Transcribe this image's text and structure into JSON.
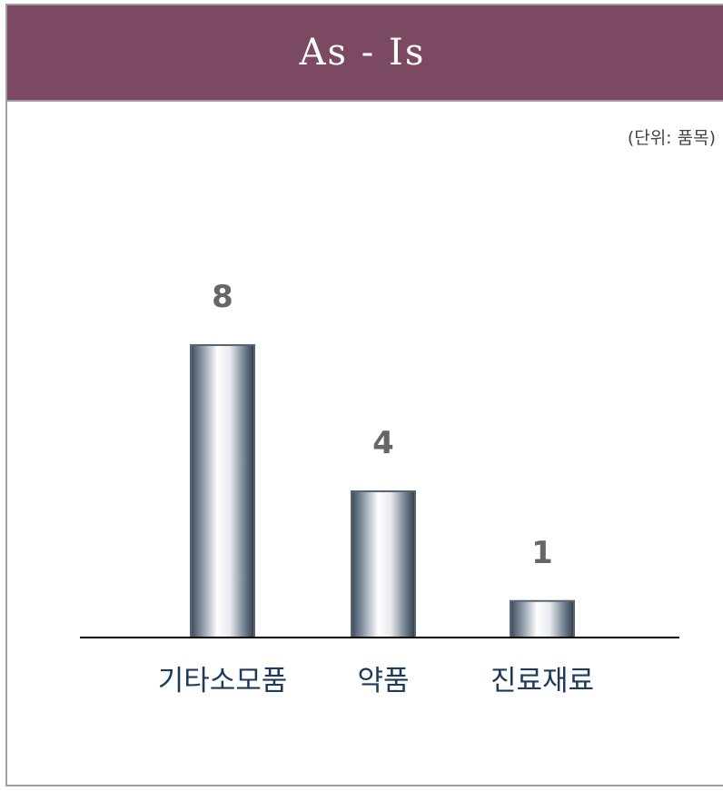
{
  "header": {
    "title": "As - Is",
    "unit_label": "(단위: 품목)"
  },
  "colors": {
    "header_bg": "#7b4a62",
    "bar_dark": "#3b4a5c",
    "bar_light": "#ffffff",
    "value_label": "#666666",
    "category_label": "#1e3a5a"
  },
  "chart_data": {
    "type": "bar",
    "categories": [
      "기타소모품",
      "약품",
      "진료재료"
    ],
    "values": [
      8,
      4,
      1
    ],
    "title": "",
    "xlabel": "",
    "ylabel": "",
    "ylim": [
      0,
      10
    ],
    "grid": false,
    "legend": "none",
    "data_labels": [
      "8",
      "4",
      "1"
    ]
  }
}
